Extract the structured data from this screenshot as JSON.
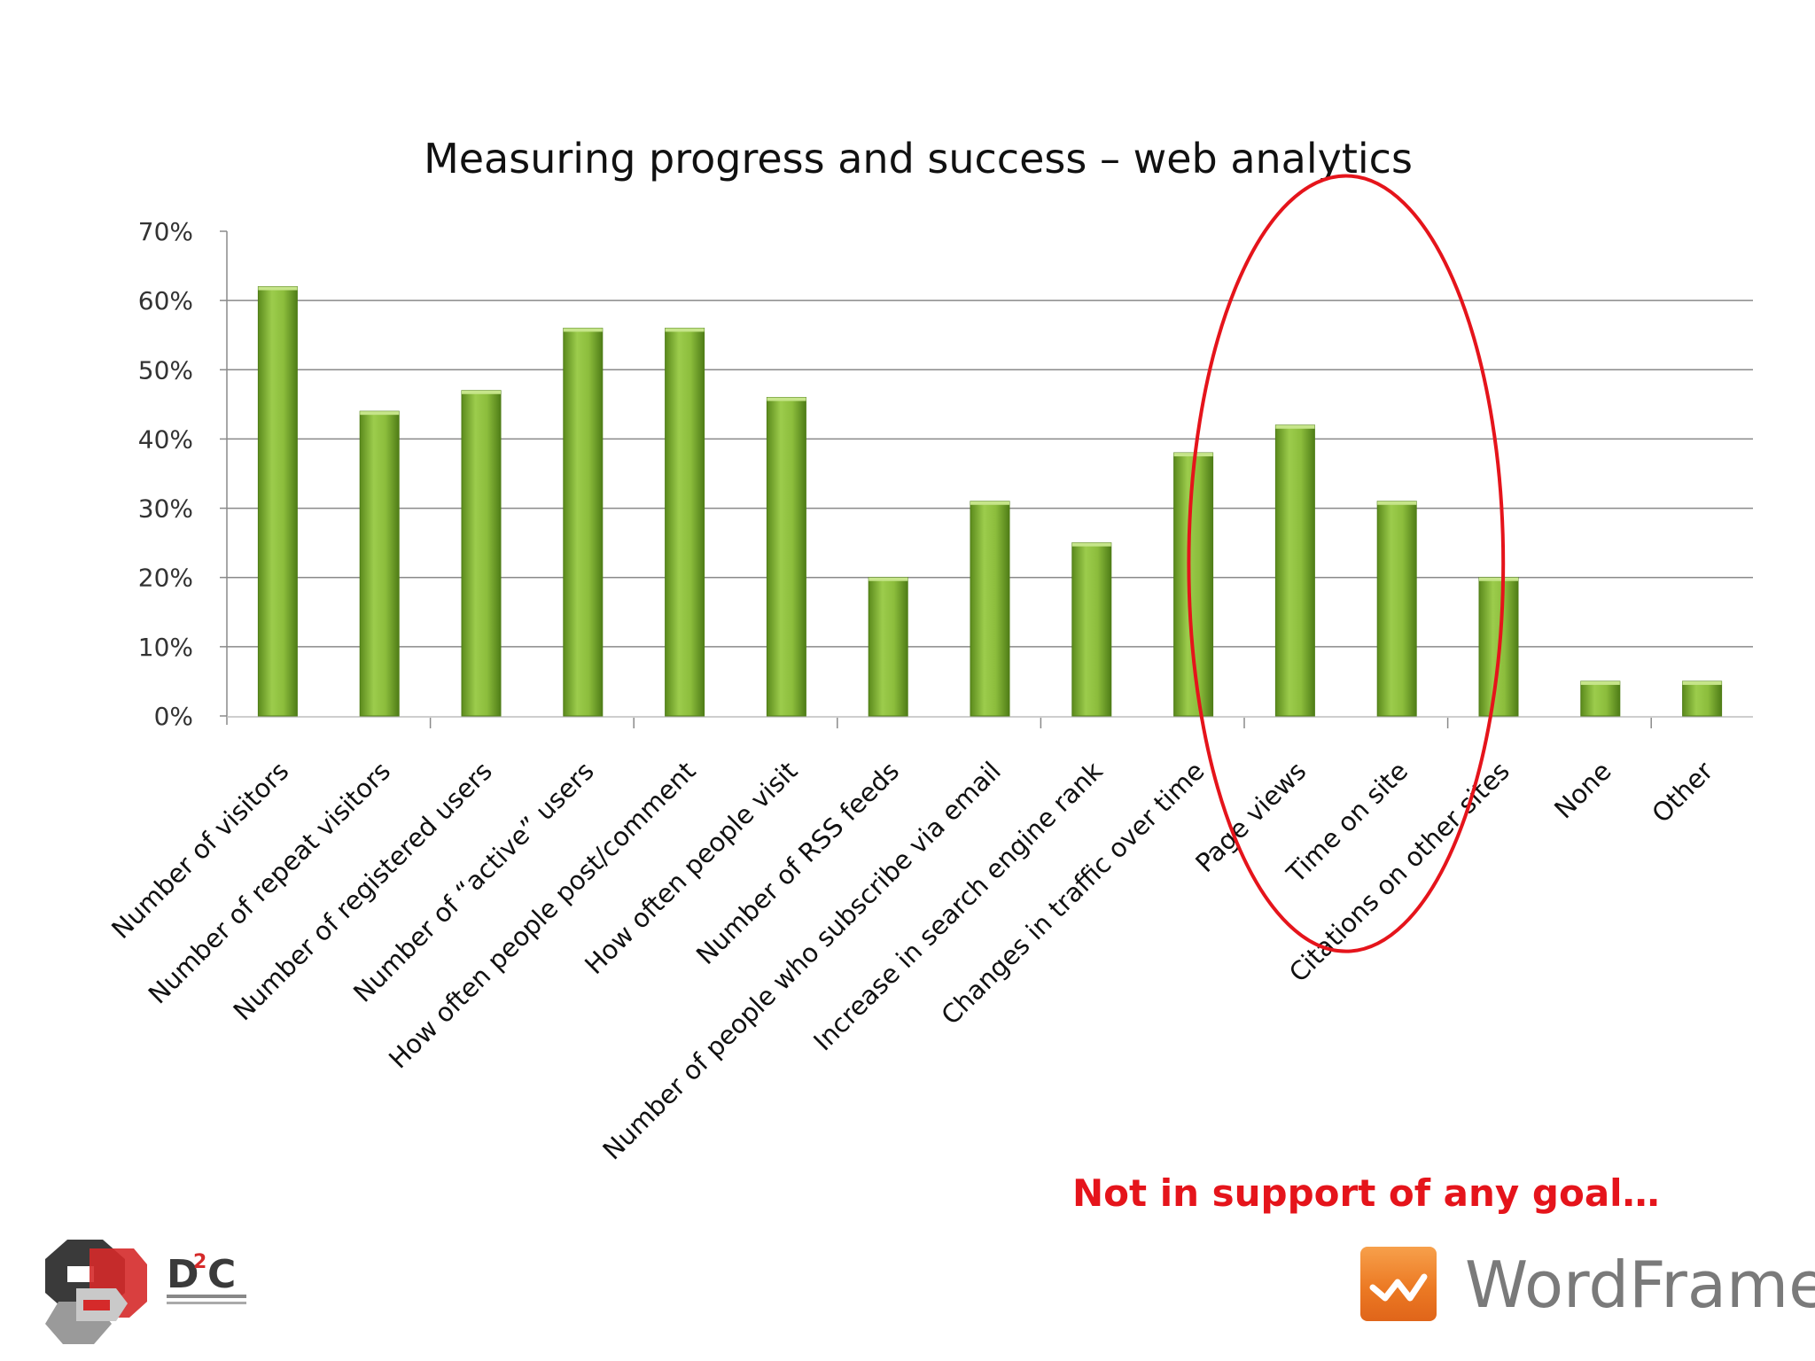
{
  "chart_data": {
    "type": "bar",
    "title": "Measuring progress and success – web analytics",
    "xlabel": "",
    "ylabel": "",
    "ylim": [
      0,
      70
    ],
    "yticks": [
      0,
      10,
      20,
      30,
      40,
      50,
      60,
      70
    ],
    "ytick_labels": [
      "0%",
      "10%",
      "20%",
      "30%",
      "40%",
      "50%",
      "60%",
      "70%"
    ],
    "grid": true,
    "legend": "none",
    "categories": [
      "Number of visitors",
      "Number of repeat visitors",
      "Number of registered users",
      "Number of “active” users",
      "How often people post/comment",
      "How often people visit",
      "Number of RSS feeds",
      "Number of people who subscribe via email",
      "Increase in search engine rank",
      "Changes in traffic over time",
      "Page views",
      "Time on site",
      "Citations on other sites",
      "None",
      "Other"
    ],
    "values": [
      62,
      44,
      47,
      56,
      56,
      46,
      20,
      31,
      25,
      38,
      42,
      31,
      20,
      5,
      5
    ],
    "bar_color": "#7fae2e",
    "highlight_color": "#e5141b",
    "highlighted_categories": [
      "Page views",
      "Time on site"
    ]
  },
  "annotation": {
    "text": "Not in support of any goal…"
  },
  "logos": {
    "left": {
      "name": "D2C",
      "mark": "D²C"
    },
    "right": {
      "name": "WordFrame",
      "text": "WordFrame"
    }
  }
}
